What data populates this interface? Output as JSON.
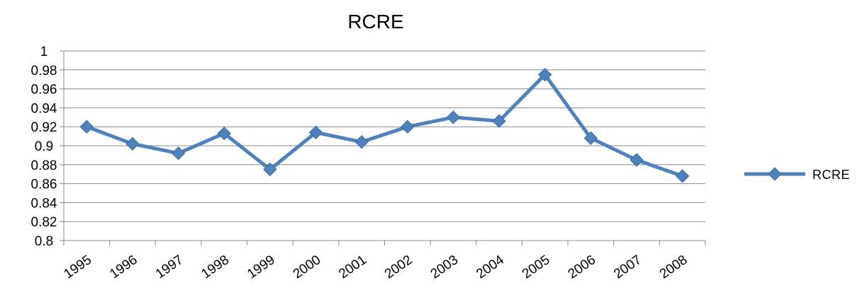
{
  "chart_data": {
    "type": "line",
    "title": "RCRE",
    "xlabel": "",
    "ylabel": "",
    "categories": [
      "1995",
      "1996",
      "1997",
      "1998",
      "1999",
      "2000",
      "2001",
      "2002",
      "2003",
      "2004",
      "2005",
      "2006",
      "2007",
      "2008"
    ],
    "series": [
      {
        "name": "RCRE",
        "values": [
          0.92,
          0.902,
          0.892,
          0.913,
          0.875,
          0.914,
          0.904,
          0.92,
          0.93,
          0.926,
          0.975,
          0.908,
          0.885,
          0.868
        ],
        "color": "#4F81BD",
        "marker": "diamond"
      }
    ],
    "ylim": [
      0.8,
      1
    ],
    "y_ticks": [
      "0.8",
      "0.82",
      "0.84",
      "0.86",
      "0.88",
      "0.9",
      "0.92",
      "0.94",
      "0.96",
      "0.98",
      "1"
    ],
    "grid": true,
    "legend_position": "right"
  }
}
